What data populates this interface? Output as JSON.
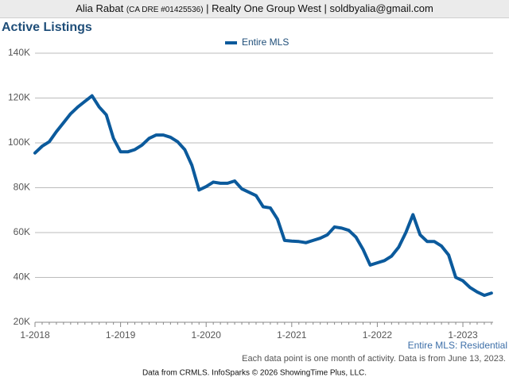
{
  "header": {
    "agent": "Alia Rabat",
    "license": "(CA DRE #01425536)",
    "rest": "| Realty One Group West | soldbyalia@gmail.com"
  },
  "chart_data": {
    "type": "line",
    "title": "Active Listings",
    "categories": [
      "1-2018",
      null,
      null,
      null,
      null,
      null,
      null,
      null,
      null,
      null,
      null,
      null,
      "1-2019",
      null,
      null,
      null,
      null,
      null,
      null,
      null,
      null,
      null,
      null,
      null,
      "1-2020",
      null,
      null,
      null,
      null,
      null,
      null,
      null,
      null,
      null,
      null,
      null,
      "1-2021",
      null,
      null,
      null,
      null,
      null,
      null,
      null,
      null,
      null,
      null,
      null,
      "1-2022",
      null,
      null,
      null,
      null,
      null,
      null,
      null,
      null,
      null,
      null,
      null,
      "1-2023",
      null,
      null,
      null,
      null
    ],
    "series": [
      {
        "name": "Entire MLS",
        "color": "#0b5a9c",
        "values": [
          95500,
          98500,
          100500,
          105000,
          109000,
          113000,
          116000,
          118500,
          121000,
          116000,
          112500,
          102000,
          96000,
          96000,
          97000,
          99000,
          102000,
          103500,
          103500,
          102500,
          100500,
          97000,
          90000,
          79000,
          80500,
          82500,
          82000,
          82000,
          83000,
          79500,
          78000,
          76500,
          71500,
          71000,
          66000,
          56500,
          56200,
          56000,
          55500,
          56500,
          57500,
          59000,
          62500,
          62000,
          61000,
          58000,
          52500,
          45500,
          46500,
          47500,
          49500,
          53500,
          60000,
          68000,
          59000,
          56000,
          56000,
          54000,
          50000,
          40000,
          38500,
          35500,
          33500,
          32000,
          33000
        ]
      }
    ],
    "ylim": [
      20000,
      140000
    ],
    "yticks": [
      {
        "value": 20000,
        "label": "20K"
      },
      {
        "value": 40000,
        "label": "40K"
      },
      {
        "value": 60000,
        "label": "60K"
      },
      {
        "value": 80000,
        "label": "80K"
      },
      {
        "value": 100000,
        "label": "100K"
      },
      {
        "value": 120000,
        "label": "120K"
      },
      {
        "value": 140000,
        "label": "140K"
      }
    ],
    "grid": true,
    "legend": "top",
    "series_note": "Entire MLS: Residential",
    "note": "Each data point is one month of activity. Data is from June 13, 2023.",
    "source": "Data from CRMLS. InfoSparks © 2026 ShowingTime Plus, LLC."
  }
}
